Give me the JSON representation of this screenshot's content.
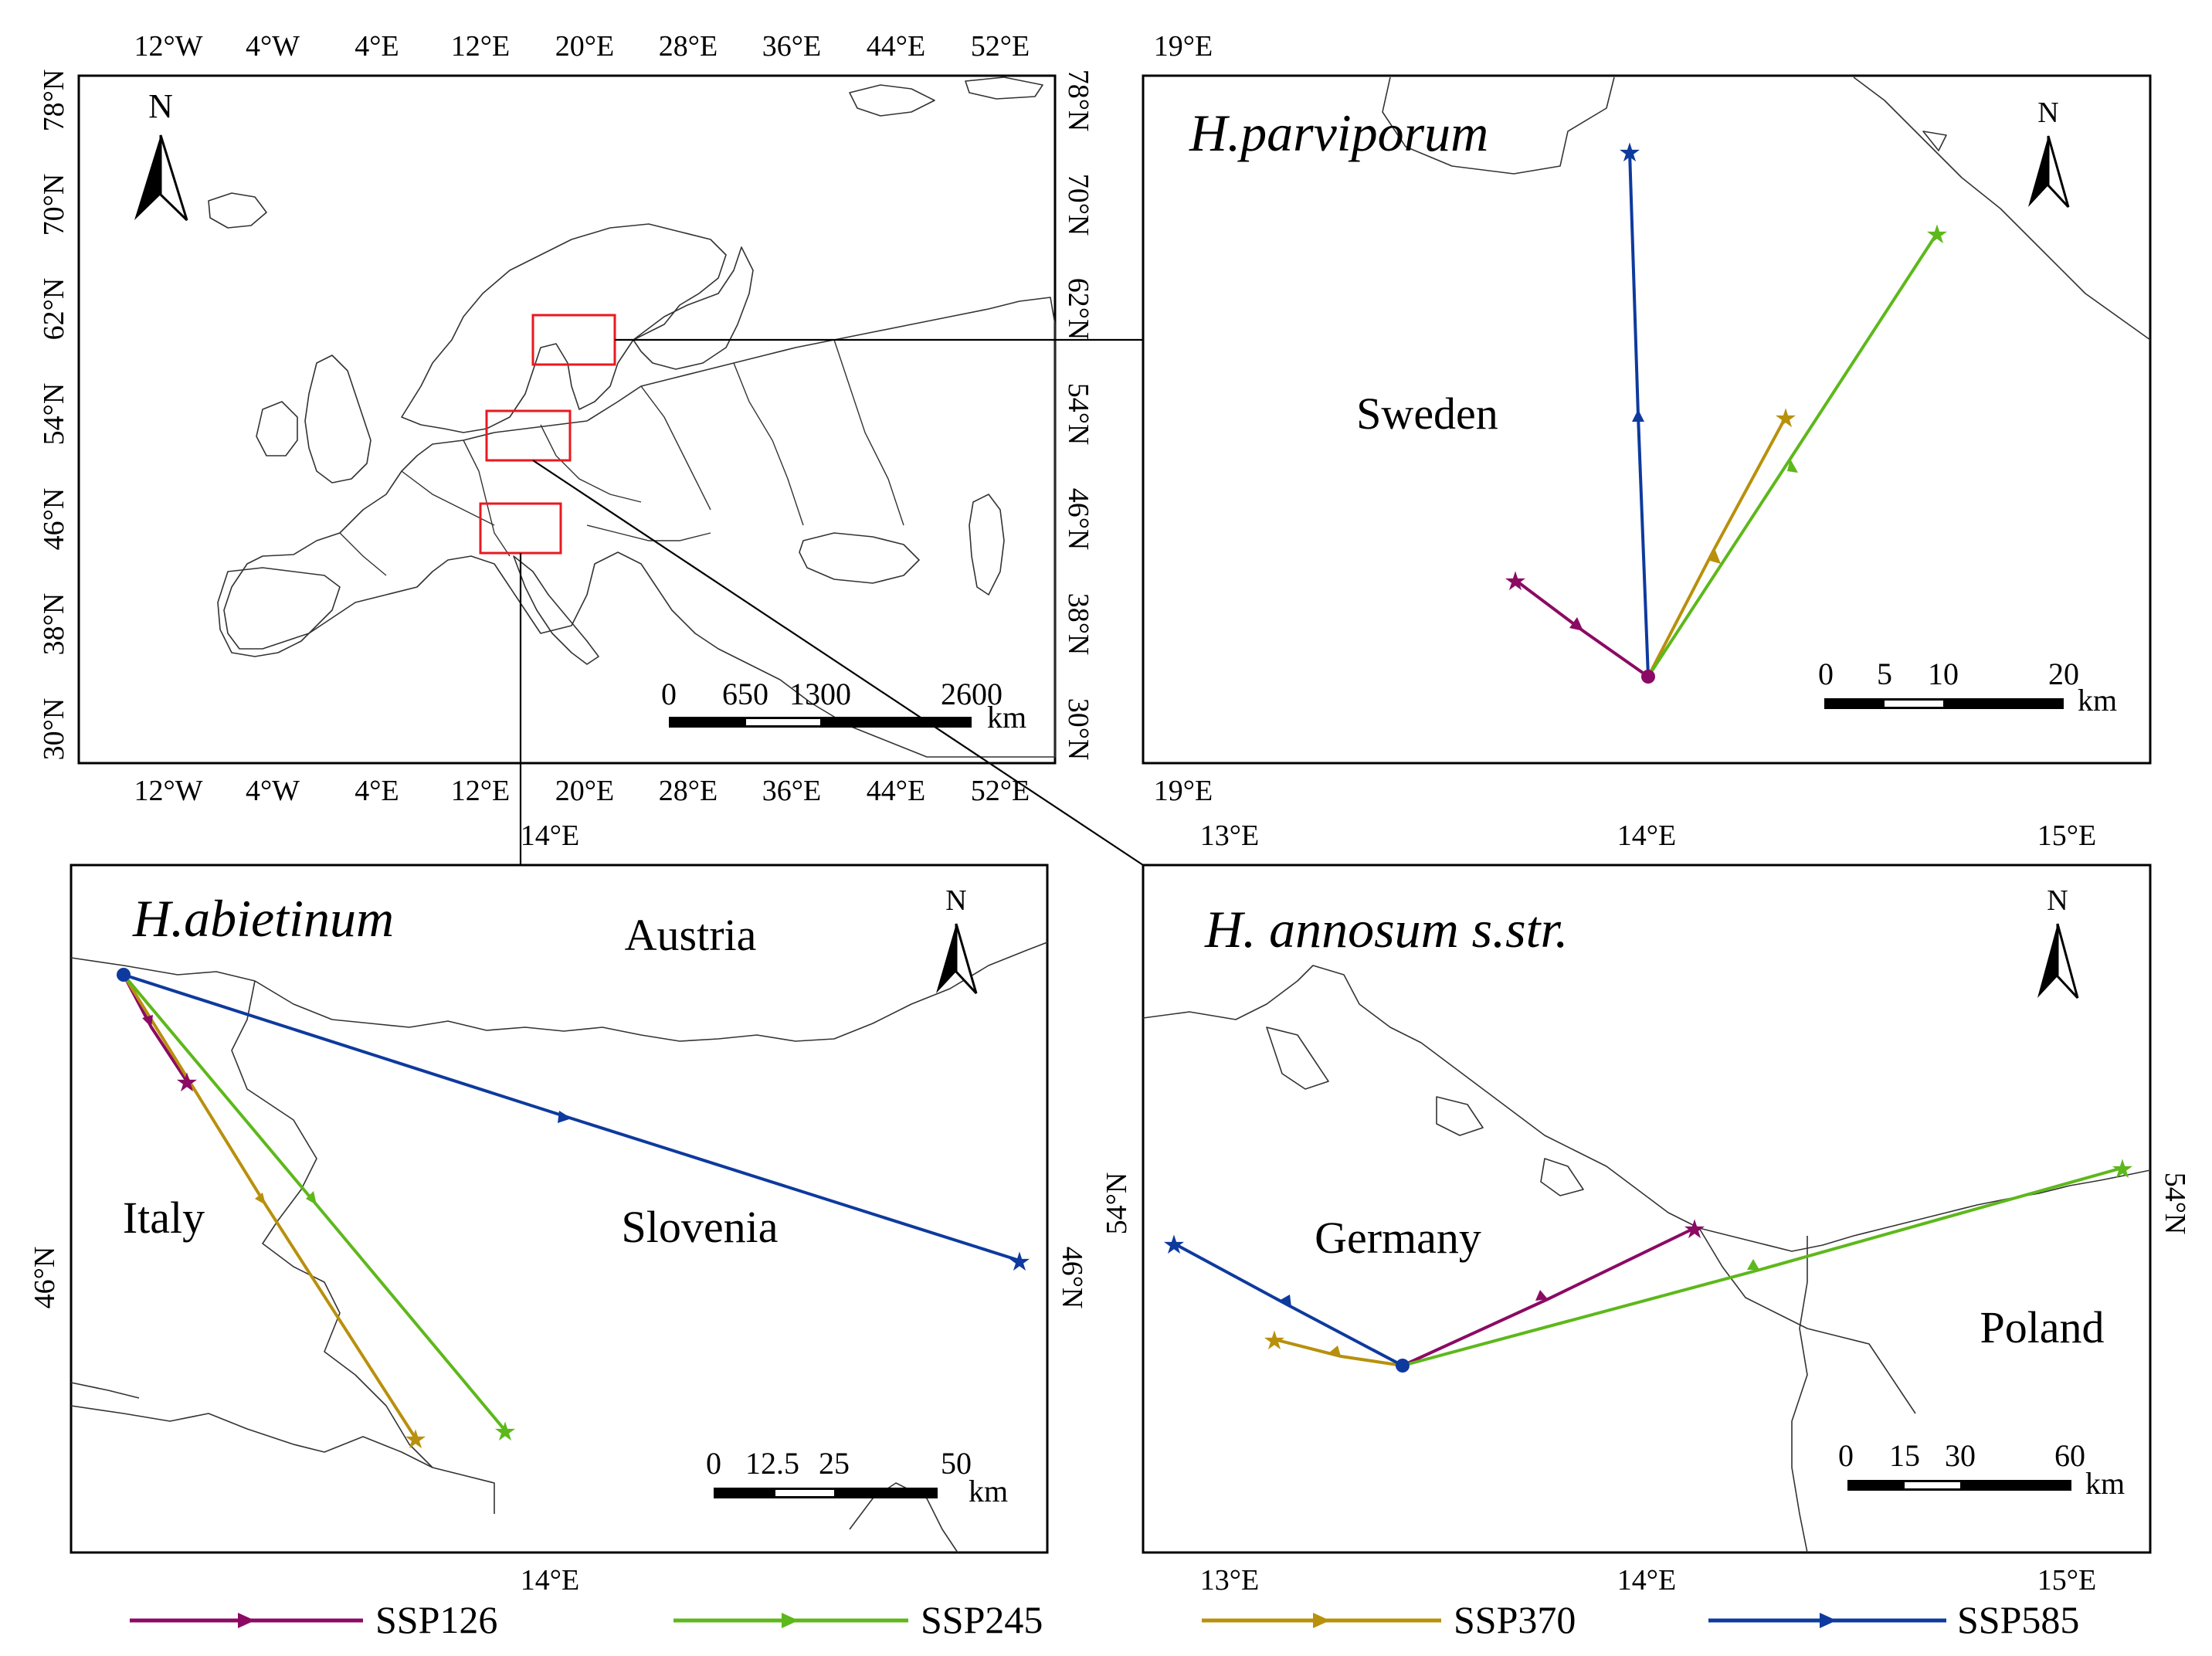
{
  "overview": {
    "top_ticks": [
      "12°W",
      "4°W",
      "4°E",
      "12°E",
      "20°E",
      "28°E",
      "36°E",
      "44°E",
      "52°E"
    ],
    "bottom_ticks": [
      "12°W",
      "4°W",
      "4°E",
      "12°E",
      "20°E",
      "28°E",
      "36°E",
      "44°E",
      "52°E"
    ],
    "left_ticks": [
      "78°N",
      "70°N",
      "62°N",
      "54°N",
      "46°N",
      "38°N",
      "30°N"
    ],
    "right_ticks": [
      "78°N",
      "70°N",
      "62°N",
      "54°N",
      "46°N",
      "38°N",
      "30°N"
    ],
    "north_label": "N",
    "scale_labels": [
      "0",
      "650",
      "1300",
      "2600"
    ],
    "scale_unit": "km"
  },
  "sweden_panel": {
    "species": "H.parviporum",
    "country": "Sweden",
    "top_tick": "19°E",
    "bottom_tick": "19°E",
    "north_label": "N",
    "scale_labels": [
      "0",
      "5",
      "10",
      "20"
    ],
    "scale_unit": "km"
  },
  "italy_panel": {
    "species": "H.abietinum",
    "countries": {
      "austria": "Austria",
      "italy": "Italy",
      "slovenia": "Slovenia"
    },
    "top_tick": "14°E",
    "bottom_tick": "14°E",
    "left_tick": "46°N",
    "right_tick": "46°N",
    "north_label": "N",
    "scale_labels": [
      "0",
      "12.5",
      "25",
      "50"
    ],
    "scale_unit": "km"
  },
  "germany_panel": {
    "species": "H. annosum s.str.",
    "countries": {
      "germany": "Germany",
      "poland": "Poland"
    },
    "top_ticks": [
      "13°E",
      "14°E",
      "15°E"
    ],
    "bottom_ticks": [
      "13°E",
      "14°E",
      "15°E"
    ],
    "left_tick": "54°N",
    "right_tick": "54°N",
    "north_label": "N",
    "scale_labels": [
      "0",
      "15",
      "30",
      "60"
    ],
    "scale_unit": "km"
  },
  "legend": [
    {
      "label": "SSP126",
      "color": "#8B0A63"
    },
    {
      "label": "SSP245",
      "color": "#5DB81B"
    },
    {
      "label": "SSP370",
      "color": "#B8900C"
    },
    {
      "label": "SSP585",
      "color": "#0E3A9E"
    }
  ],
  "colors": {
    "highlight_box": "#E8191F",
    "SSP126": "#8B0A63",
    "SSP245": "#5DB81B",
    "SSP370": "#B8900C",
    "SSP585": "#0E3A9E"
  }
}
